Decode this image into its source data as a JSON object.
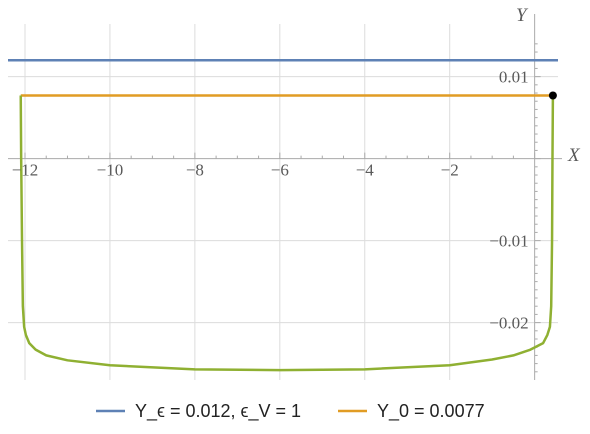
{
  "chart_data": {
    "type": "line",
    "xlabel": "X",
    "ylabel": "Y",
    "xlim": [
      -12.4,
      0.55
    ],
    "ylim": [
      -0.027,
      0.0152
    ],
    "grid": true,
    "legend_placement": "bottom",
    "x_ticks": [
      {
        "value": -12,
        "label": "-12"
      },
      {
        "value": -10,
        "label": "-10"
      },
      {
        "value": -8,
        "label": "-8"
      },
      {
        "value": -6,
        "label": "-6"
      },
      {
        "value": -4,
        "label": "-4"
      },
      {
        "value": -2,
        "label": "-2"
      }
    ],
    "y_ticks": [
      {
        "value": 0.01,
        "label": "0.01"
      },
      {
        "value": -0.01,
        "label": "-0.01"
      },
      {
        "value": -0.02,
        "label": "-0.02"
      }
    ],
    "legend": [
      {
        "text": "Y_ϵ = 0.012, ϵ_V = 1",
        "color": "#5e81b5"
      },
      {
        "text": "Y_0 = 0.0077",
        "color": "#e19c24"
      }
    ],
    "series": [
      {
        "color": "#5e81b5",
        "style": "horizontal",
        "x": [
          -12.4,
          0.55
        ],
        "y": [
          0.012,
          0.012
        ]
      },
      {
        "color": "#e19c24",
        "style": "horizontal",
        "x": [
          -12.1,
          0.43
        ],
        "y": [
          0.0077,
          0.0077
        ]
      },
      {
        "color": "#8fb032",
        "style": "curve",
        "x": [
          -12.1,
          -12.09,
          -12.07,
          -12.05,
          -12.02,
          -11.98,
          -11.9,
          -11.75,
          -11.5,
          -11,
          -10,
          -8,
          -6,
          -4,
          -2,
          -1,
          -0.5,
          -0.1,
          0.2,
          0.3,
          0.36,
          0.39,
          0.41,
          0.42,
          0.43
        ],
        "y": [
          0.0077,
          0.0,
          -0.01,
          -0.018,
          -0.0205,
          -0.0215,
          -0.0225,
          -0.0233,
          -0.024,
          -0.0246,
          -0.0252,
          -0.0257,
          -0.0258,
          -0.0257,
          -0.0252,
          -0.0245,
          -0.024,
          -0.0233,
          -0.0225,
          -0.0215,
          -0.0205,
          -0.018,
          -0.01,
          0.0,
          0.0077
        ]
      }
    ],
    "marker": {
      "x": 0.43,
      "y": 0.0077,
      "color": "#000000"
    }
  },
  "colors": {
    "grid": "#dcdcdc",
    "axis": "#aaaaaa"
  }
}
